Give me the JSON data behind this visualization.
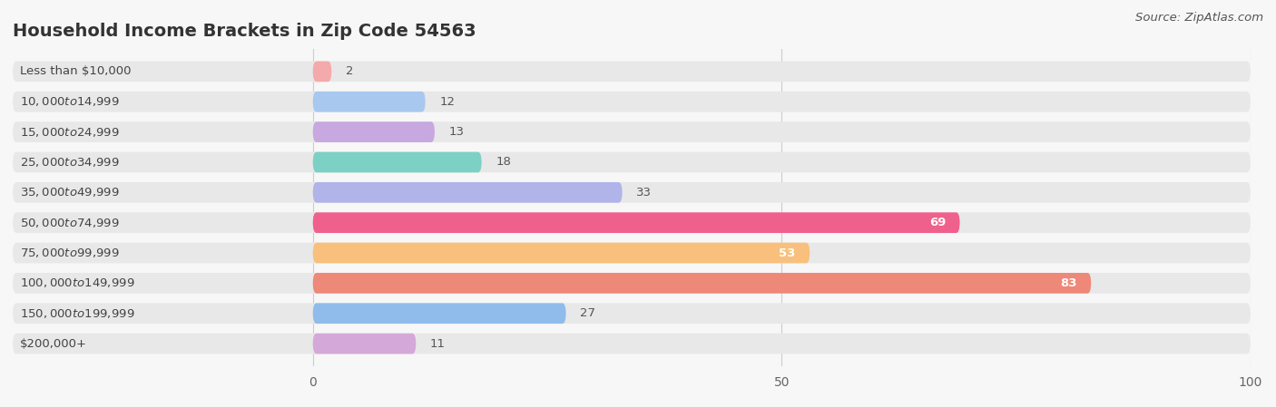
{
  "title": "Household Income Brackets in Zip Code 54563",
  "source": "Source: ZipAtlas.com",
  "categories": [
    "Less than $10,000",
    "$10,000 to $14,999",
    "$15,000 to $24,999",
    "$25,000 to $34,999",
    "$35,000 to $49,999",
    "$50,000 to $74,999",
    "$75,000 to $99,999",
    "$100,000 to $149,999",
    "$150,000 to $199,999",
    "$200,000+"
  ],
  "values": [
    2,
    12,
    13,
    18,
    33,
    69,
    53,
    83,
    27,
    11
  ],
  "bar_colors": [
    "#F4AAAA",
    "#A8C8F0",
    "#C8A8E0",
    "#7DD0C4",
    "#B0B4E8",
    "#F0608C",
    "#F8C07C",
    "#EE8878",
    "#90BCEC",
    "#D4A8D8"
  ],
  "xlim": [
    0,
    100
  ],
  "xticks": [
    0,
    50,
    100
  ],
  "background_color": "#f7f7f7",
  "bar_background_color": "#e8e8e8",
  "title_fontsize": 14,
  "label_fontsize": 9.5,
  "value_fontsize": 9.5,
  "source_fontsize": 9.5,
  "title_color": "#333333",
  "label_color": "#444444",
  "value_color_outside": "#555555",
  "value_color_inside": "#ffffff"
}
